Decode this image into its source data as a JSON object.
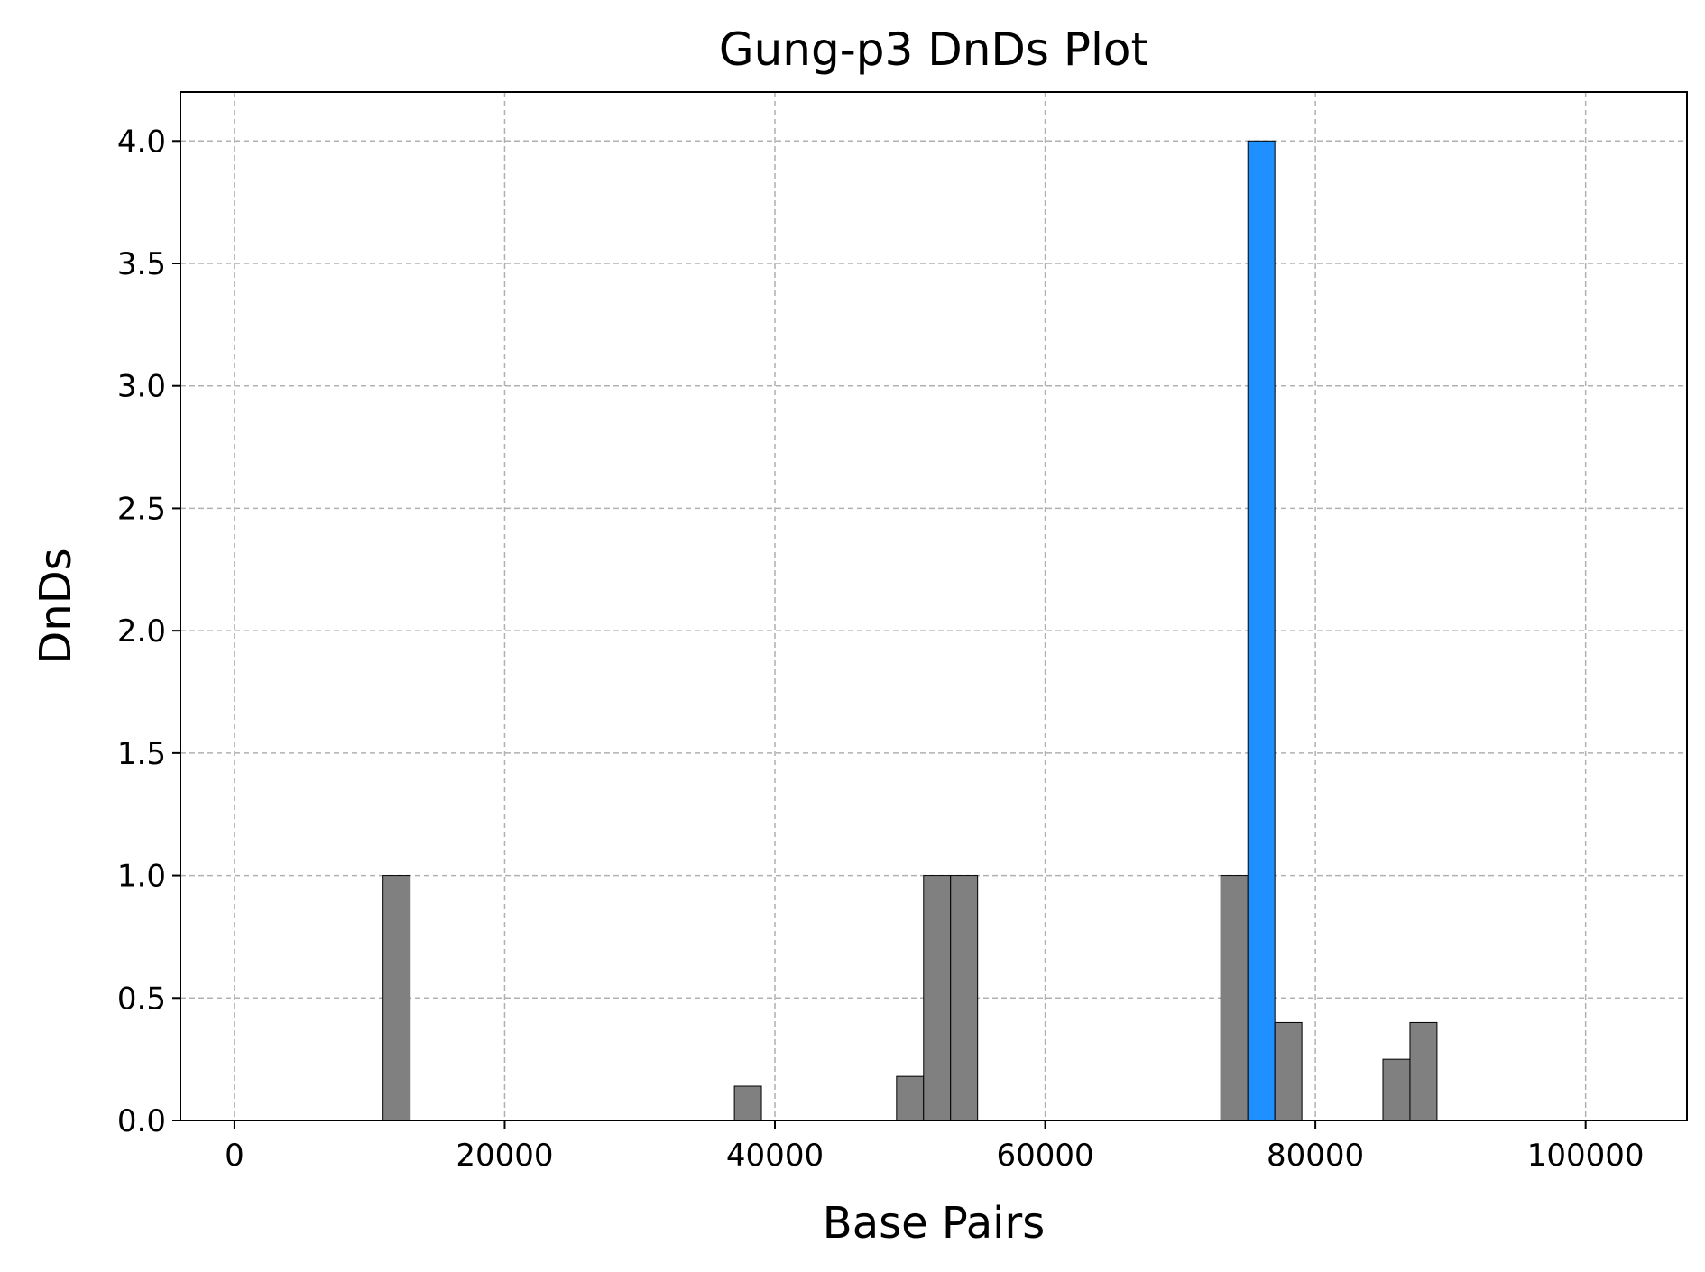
{
  "chart_data": {
    "type": "bar",
    "title": "Gung-p3 DnDs Plot",
    "xlabel": "Base Pairs",
    "ylabel": "DnDs",
    "xlim": [
      -4000,
      107500
    ],
    "ylim": [
      0,
      4.2
    ],
    "xticks": [
      0,
      20000,
      40000,
      60000,
      80000,
      100000
    ],
    "xtick_labels": [
      "0",
      "20000",
      "40000",
      "60000",
      "80000",
      "100000"
    ],
    "yticks": [
      0,
      0.5,
      1.0,
      1.5,
      2.0,
      2.5,
      3.0,
      3.5,
      4.0
    ],
    "ytick_labels": [
      "0.0",
      "0.5",
      "1.0",
      "1.5",
      "2.0",
      "2.5",
      "3.0",
      "3.5",
      "4.0"
    ],
    "grid": true,
    "bin_width": 2000,
    "bars": [
      {
        "x": 12000,
        "value": 1.0,
        "color": "#808080"
      },
      {
        "x": 38000,
        "value": 0.14,
        "color": "#808080"
      },
      {
        "x": 50000,
        "value": 0.18,
        "color": "#808080"
      },
      {
        "x": 52000,
        "value": 1.0,
        "color": "#808080"
      },
      {
        "x": 54000,
        "value": 1.0,
        "color": "#808080"
      },
      {
        "x": 74000,
        "value": 1.0,
        "color": "#808080"
      },
      {
        "x": 76000,
        "value": 4.0,
        "color": "#1e90ff"
      },
      {
        "x": 78000,
        "value": 0.4,
        "color": "#808080"
      },
      {
        "x": 86000,
        "value": 0.25,
        "color": "#808080"
      },
      {
        "x": 88000,
        "value": 0.4,
        "color": "#808080"
      }
    ],
    "colors": {
      "default_bar": "#808080",
      "highlight_bar": "#1e90ff",
      "bar_edge": "#000000"
    }
  }
}
